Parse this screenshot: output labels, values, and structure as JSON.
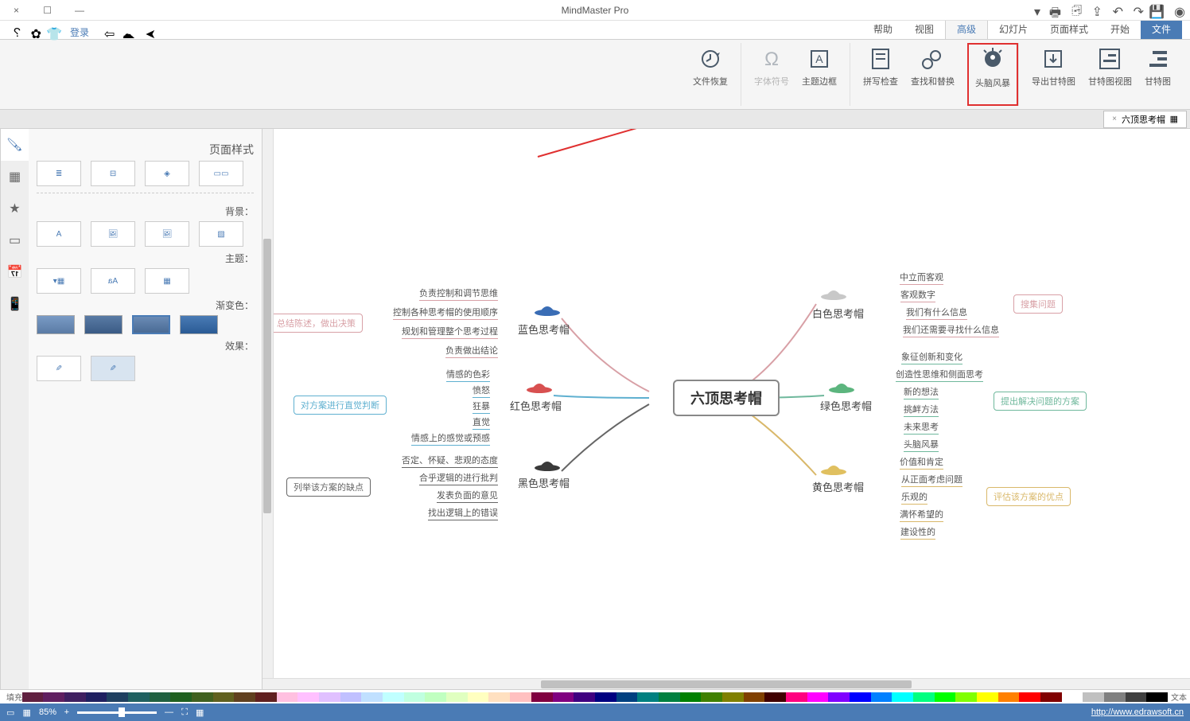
{
  "app": {
    "title": "MindMaster Pro"
  },
  "window_controls": {
    "min": "—",
    "max": "☐",
    "close": "×"
  },
  "menu": {
    "file": "文件",
    "tabs": [
      "开始",
      "页面样式",
      "幻灯片",
      "高级",
      "视图",
      "帮助"
    ],
    "active": "高级",
    "login": "登录"
  },
  "ribbon": {
    "gantt": "甘特图",
    "export_gantt": "导出甘特图",
    "gantt_view": "甘特图视图",
    "brainstorm": "头脑风暴",
    "find_replace": "查找和替换",
    "spell_check": "拼写检查",
    "topic_border": "主题边框",
    "font_symbol": "字体符号",
    "history": "文件恢复"
  },
  "doctab": {
    "name": "六顶思考帽",
    "close": "×"
  },
  "mindmap": {
    "central": "六顶思考帽",
    "colors": {
      "white": "#d8a0a6",
      "blue": "#d8a0a6",
      "green": "#6fb89c",
      "red": "#5fb0d0",
      "yellow": "#d9b86a",
      "black": "#666666"
    },
    "hat_colors": {
      "white": "#c8c8c8",
      "blue": "#3a6db5",
      "green": "#5cb57e",
      "red": "#d85050",
      "yellow": "#e0c060",
      "black": "#3a3a3a"
    },
    "branches": {
      "white": {
        "label": "白色思考帽",
        "leaves": [
          "中立而客观",
          "客观数字",
          "我们有什么信息",
          "我们还需要寻找什么信息"
        ],
        "summary": "搜集问题"
      },
      "blue": {
        "label": "蓝色思考帽",
        "leaves": [
          "负责控制和调节思维",
          "控制各种思考帽的使用顺序",
          "规划和管理整个思考过程",
          "负责做出结论"
        ],
        "summary": "总结陈述，做出决策"
      },
      "green": {
        "label": "绿色思考帽",
        "leaves": [
          "象征创新和变化",
          "创造性思维和侧面思考",
          "新的想法",
          "挑衅方法",
          "未来思考",
          "头脑风暴"
        ],
        "summary": "提出解决问题的方案"
      },
      "red": {
        "label": "红色思考帽",
        "leaves": [
          "情感的色彩",
          "愤怒",
          "狂暴",
          "直觉",
          "情感上的感觉或预感"
        ],
        "summary": "对方案进行直觉判断"
      },
      "yellow": {
        "label": "黄色思考帽",
        "leaves": [
          "价值和肯定",
          "从正面考虑问题",
          "乐观的",
          "满怀希望的",
          "建设性的"
        ],
        "summary": "评估该方案的优点"
      },
      "black": {
        "label": "黑色思考帽",
        "leaves": [
          "否定、怀疑、悲观的态度",
          "合乎逻辑的进行批判",
          "发表负面的意见",
          "找出逻辑上的错误"
        ],
        "summary": "列举该方案的缺点"
      }
    }
  },
  "rightpanel": {
    "title": "页面样式",
    "sections": {
      "theme": "主题：",
      "bg": "背景：",
      "colors": "渐变色：",
      "effects": "效果："
    },
    "title_header": "页面样式"
  },
  "colorbar": {
    "label": "填充",
    "text_label": "文本"
  },
  "statusbar": {
    "url": "http://www.edrawsoft.cn",
    "zoom": "85%",
    "plus": "+",
    "minus": "—"
  },
  "palette": [
    "#000000",
    "#404040",
    "#808080",
    "#c0c0c0",
    "#ffffff",
    "#800000",
    "#ff0000",
    "#ff8000",
    "#ffff00",
    "#80ff00",
    "#00ff00",
    "#00ff80",
    "#00ffff",
    "#0080ff",
    "#0000ff",
    "#8000ff",
    "#ff00ff",
    "#ff0080",
    "#400000",
    "#804000",
    "#808000",
    "#408000",
    "#008000",
    "#008040",
    "#008080",
    "#004080",
    "#000080",
    "#400080",
    "#800080",
    "#800040",
    "#ffc0c0",
    "#ffe0c0",
    "#ffffc0",
    "#e0ffc0",
    "#c0ffc0",
    "#c0ffe0",
    "#c0ffff",
    "#c0e0ff",
    "#c0c0ff",
    "#e0c0ff",
    "#ffc0ff",
    "#ffc0e0",
    "#602020",
    "#604020",
    "#606020",
    "#406020",
    "#206020",
    "#206040",
    "#206060",
    "#204060",
    "#202060",
    "#402060",
    "#602060",
    "#602040"
  ]
}
